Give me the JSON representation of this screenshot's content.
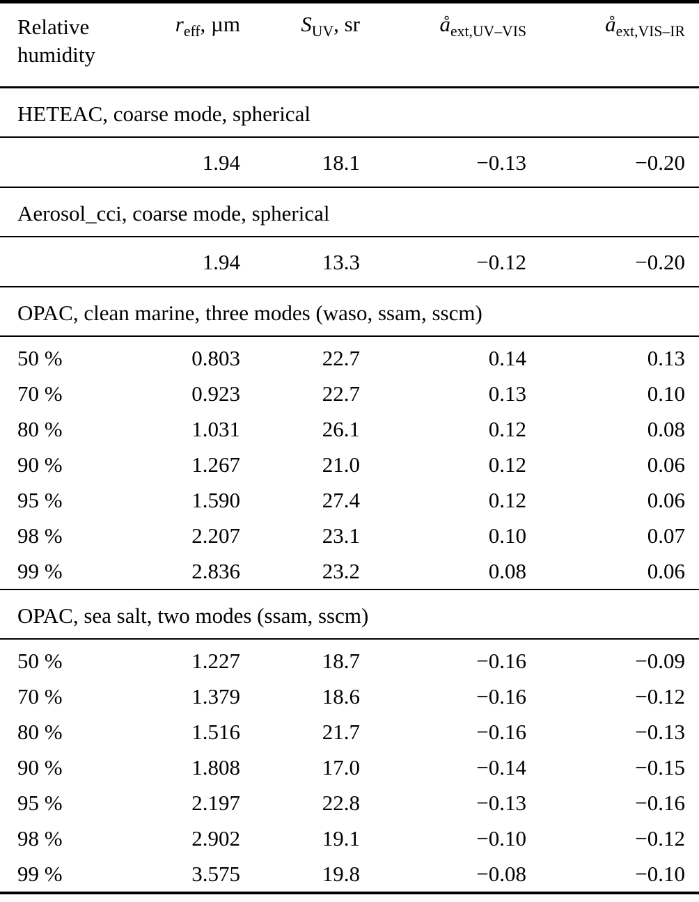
{
  "table": {
    "header": {
      "columns": [
        {
          "type": "text2",
          "line1": "Relative",
          "line2": "humidity"
        },
        {
          "type": "math",
          "symbol": "r",
          "subscript": "eff",
          "suffix": ", µm"
        },
        {
          "type": "math",
          "symbol": "S",
          "subscript": "UV",
          "suffix": ", sr"
        },
        {
          "type": "math",
          "symbol": "å",
          "subscript": "ext,UV–VIS",
          "suffix": ""
        },
        {
          "type": "math",
          "symbol": "å",
          "subscript": "ext,VIS–IR",
          "suffix": ""
        }
      ]
    },
    "sections": [
      {
        "title": "HETEAC, coarse mode, spherical",
        "rows": [
          [
            "",
            "1.94",
            "18.1",
            "−0.13",
            "−0.20"
          ]
        ]
      },
      {
        "title": "Aerosol_cci, coarse mode, spherical",
        "rows": [
          [
            "",
            "1.94",
            "13.3",
            "−0.12",
            "−0.20"
          ]
        ]
      },
      {
        "title": "OPAC, clean marine, three modes (waso, ssam, sscm)",
        "rows": [
          [
            "50 %",
            "0.803",
            "22.7",
            "0.14",
            "0.13"
          ],
          [
            "70 %",
            "0.923",
            "22.7",
            "0.13",
            "0.10"
          ],
          [
            "80 %",
            "1.031",
            "26.1",
            "0.12",
            "0.08"
          ],
          [
            "90 %",
            "1.267",
            "21.0",
            "0.12",
            "0.06"
          ],
          [
            "95 %",
            "1.590",
            "27.4",
            "0.12",
            "0.06"
          ],
          [
            "98 %",
            "2.207",
            "23.1",
            "0.10",
            "0.07"
          ],
          [
            "99 %",
            "2.836",
            "23.2",
            "0.08",
            "0.06"
          ]
        ]
      },
      {
        "title": "OPAC, sea salt, two modes (ssam, sscm)",
        "rows": [
          [
            "50 %",
            "1.227",
            "18.7",
            "−0.16",
            "−0.09"
          ],
          [
            "70 %",
            "1.379",
            "18.6",
            "−0.16",
            "−0.12"
          ],
          [
            "80 %",
            "1.516",
            "21.7",
            "−0.16",
            "−0.13"
          ],
          [
            "90 %",
            "1.808",
            "17.0",
            "−0.14",
            "−0.15"
          ],
          [
            "95 %",
            "2.197",
            "22.8",
            "−0.13",
            "−0.16"
          ],
          [
            "98 %",
            "2.902",
            "19.1",
            "−0.10",
            "−0.12"
          ],
          [
            "99 %",
            "3.575",
            "19.8",
            "−0.08",
            "−0.10"
          ]
        ]
      }
    ]
  },
  "colors": {
    "text": "#000000",
    "background": "#ffffff",
    "rule": "#000000"
  }
}
